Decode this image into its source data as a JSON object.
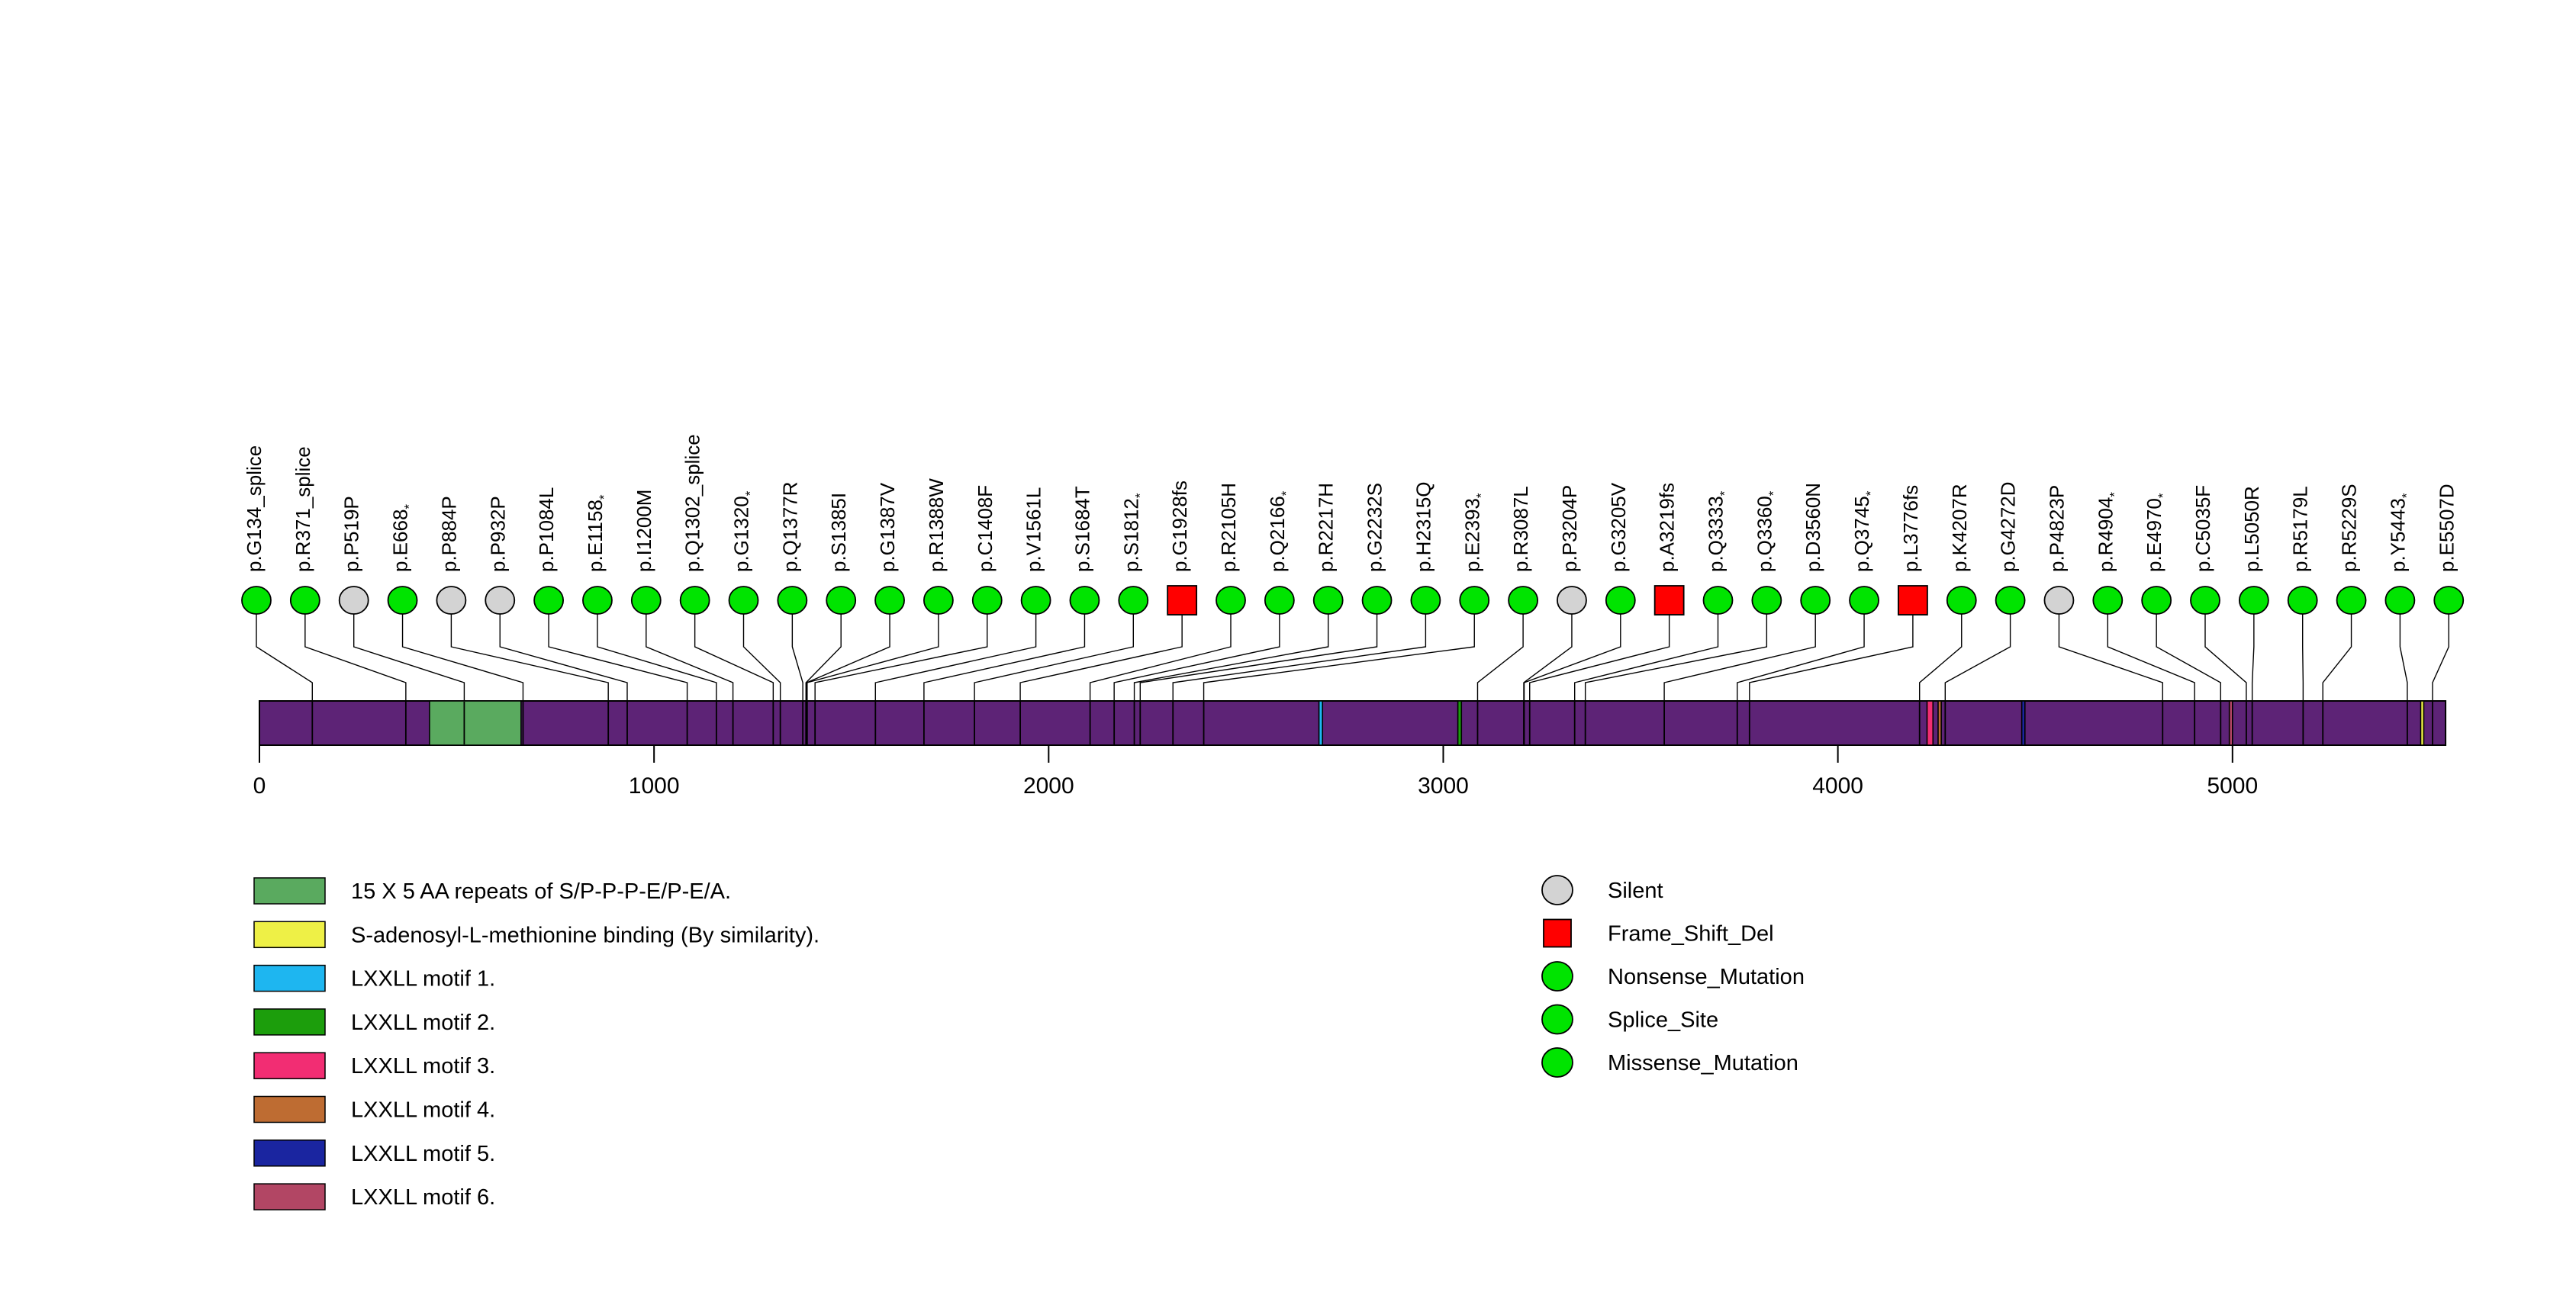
{
  "figure": {
    "background": "#FFFFFF",
    "description": "Protein lollipop mutation plot"
  },
  "chart_data": {
    "type": "lollipop",
    "xlim": [
      0,
      5540
    ],
    "axis": {
      "ticks": [
        0,
        1000,
        2000,
        3000,
        4000,
        5000
      ]
    },
    "mutation_type_styles": {
      "Silent": {
        "color": "#D3D3D3",
        "shape": "circle"
      },
      "Frame_Shift_Del": {
        "color": "#FF0000",
        "shape": "square"
      },
      "Nonsense_Mutation": {
        "color": "#00E400",
        "shape": "circle"
      },
      "Splice_Site": {
        "color": "#00E400",
        "shape": "circle"
      },
      "Missense_Mutation": {
        "color": "#00E400",
        "shape": "circle"
      }
    },
    "mutations": [
      {
        "label": "p.G134_splice",
        "aa": 134,
        "type": "Splice_Site"
      },
      {
        "label": "p.R371_splice",
        "aa": 371,
        "type": "Splice_Site"
      },
      {
        "label": "p.P519P",
        "aa": 519,
        "type": "Silent"
      },
      {
        "label": "p.E668*",
        "aa": 668,
        "type": "Nonsense_Mutation"
      },
      {
        "label": "p.P884P",
        "aa": 884,
        "type": "Silent"
      },
      {
        "label": "p.P932P",
        "aa": 932,
        "type": "Silent"
      },
      {
        "label": "p.P1084L",
        "aa": 1084,
        "type": "Missense_Mutation"
      },
      {
        "label": "p.E1158*",
        "aa": 1158,
        "type": "Nonsense_Mutation"
      },
      {
        "label": "p.I1200M",
        "aa": 1200,
        "type": "Missense_Mutation"
      },
      {
        "label": "p.Q1302_splice",
        "aa": 1302,
        "type": "Splice_Site"
      },
      {
        "label": "p.G1320*",
        "aa": 1320,
        "type": "Nonsense_Mutation"
      },
      {
        "label": "p.Q1377R",
        "aa": 1377,
        "type": "Missense_Mutation"
      },
      {
        "label": "p.S1385I",
        "aa": 1385,
        "type": "Missense_Mutation"
      },
      {
        "label": "p.G1387V",
        "aa": 1387,
        "type": "Missense_Mutation"
      },
      {
        "label": "p.R1388W",
        "aa": 1388,
        "type": "Missense_Mutation"
      },
      {
        "label": "p.C1408F",
        "aa": 1408,
        "type": "Missense_Mutation"
      },
      {
        "label": "p.V1561L",
        "aa": 1561,
        "type": "Missense_Mutation"
      },
      {
        "label": "p.S1684T",
        "aa": 1684,
        "type": "Missense_Mutation"
      },
      {
        "label": "p.S1812*",
        "aa": 1812,
        "type": "Nonsense_Mutation"
      },
      {
        "label": "p.G1928fs",
        "aa": 1928,
        "type": "Frame_Shift_Del"
      },
      {
        "label": "p.R2105H",
        "aa": 2105,
        "type": "Missense_Mutation"
      },
      {
        "label": "p.Q2166*",
        "aa": 2166,
        "type": "Nonsense_Mutation"
      },
      {
        "label": "p.R2217H",
        "aa": 2217,
        "type": "Missense_Mutation"
      },
      {
        "label": "p.G2232S",
        "aa": 2232,
        "type": "Missense_Mutation"
      },
      {
        "label": "p.H2315Q",
        "aa": 2315,
        "type": "Missense_Mutation"
      },
      {
        "label": "p.E2393*",
        "aa": 2393,
        "type": "Nonsense_Mutation"
      },
      {
        "label": "p.R3087L",
        "aa": 3087,
        "type": "Missense_Mutation"
      },
      {
        "label": "p.P3204P",
        "aa": 3204,
        "type": "Silent"
      },
      {
        "label": "p.G3205V",
        "aa": 3205,
        "type": "Missense_Mutation"
      },
      {
        "label": "p.A3219fs",
        "aa": 3219,
        "type": "Frame_Shift_Del"
      },
      {
        "label": "p.Q3333*",
        "aa": 3333,
        "type": "Nonsense_Mutation"
      },
      {
        "label": "p.Q3360*",
        "aa": 3360,
        "type": "Nonsense_Mutation"
      },
      {
        "label": "p.D3560N",
        "aa": 3560,
        "type": "Missense_Mutation"
      },
      {
        "label": "p.Q3745*",
        "aa": 3745,
        "type": "Nonsense_Mutation"
      },
      {
        "label": "p.L3776fs",
        "aa": 3776,
        "type": "Frame_Shift_Del"
      },
      {
        "label": "p.K4207R",
        "aa": 4207,
        "type": "Missense_Mutation"
      },
      {
        "label": "p.G4272D",
        "aa": 4272,
        "type": "Missense_Mutation"
      },
      {
        "label": "p.P4823P",
        "aa": 4823,
        "type": "Silent"
      },
      {
        "label": "p.R4904*",
        "aa": 4904,
        "type": "Nonsense_Mutation"
      },
      {
        "label": "p.E4970*",
        "aa": 4970,
        "type": "Nonsense_Mutation"
      },
      {
        "label": "p.C5035F",
        "aa": 5035,
        "type": "Missense_Mutation"
      },
      {
        "label": "p.L5050R",
        "aa": 5050,
        "type": "Missense_Mutation"
      },
      {
        "label": "p.R5179L",
        "aa": 5179,
        "type": "Missense_Mutation"
      },
      {
        "label": "p.R5229S",
        "aa": 5229,
        "type": "Missense_Mutation"
      },
      {
        "label": "p.Y5443*",
        "aa": 5443,
        "type": "Nonsense_Mutation"
      },
      {
        "label": "p.E5507D",
        "aa": 5507,
        "type": "Missense_Mutation"
      }
    ],
    "protein_bar_color": "#5D2376",
    "domains": [
      {
        "name": "15 X 5 AA repeats of S/P-P-P-E/P-E/A.",
        "start": 431,
        "end": 663,
        "color": "#5AAA5F"
      },
      {
        "name": "LXXLL motif 1.",
        "start": 2685,
        "end": 2694,
        "color": "#1EB6F0"
      },
      {
        "name": "LXXLL motif 2.",
        "start": 3037,
        "end": 3046,
        "color": "#1C9E0C"
      },
      {
        "name": "LXXLL motif 3.",
        "start": 4226,
        "end": 4241,
        "color": "#F22D73"
      },
      {
        "name": "LXXLL motif 4.",
        "start": 4254,
        "end": 4262,
        "color": "#BE6C32"
      },
      {
        "name": "LXXLL motif 5.",
        "start": 4466,
        "end": 4474,
        "color": "#1A25A0"
      },
      {
        "name": "LXXLL motif 6.",
        "start": 4992,
        "end": 5000,
        "color": "#B24664"
      },
      {
        "name": "S-adenosyl-L-methionine binding (By similarity).",
        "start": 5477,
        "end": 5484,
        "color": "#EEF046"
      }
    ],
    "legend_domains": [
      {
        "label": "15 X 5 AA repeats of S/P-P-P-E/P-E/A.",
        "color": "#5AAA5F"
      },
      {
        "label": "S-adenosyl-L-methionine binding (By similarity).",
        "color": "#EEF046"
      },
      {
        "label": "LXXLL motif 1.",
        "color": "#1EB6F0"
      },
      {
        "label": "LXXLL motif 2.",
        "color": "#1C9E0C"
      },
      {
        "label": "LXXLL motif 3.",
        "color": "#F22D73"
      },
      {
        "label": "LXXLL motif 4.",
        "color": "#BE6C32"
      },
      {
        "label": "LXXLL motif 5.",
        "color": "#1A25A0"
      },
      {
        "label": "LXXLL motif 6.",
        "color": "#B24664"
      }
    ],
    "legend_mutation_types": [
      {
        "label": "Silent",
        "color": "#D3D3D3",
        "shape": "circle"
      },
      {
        "label": "Frame_Shift_Del",
        "color": "#FF0000",
        "shape": "square"
      },
      {
        "label": "Nonsense_Mutation",
        "color": "#00E400",
        "shape": "circle"
      },
      {
        "label": "Splice_Site",
        "color": "#00E400",
        "shape": "circle"
      },
      {
        "label": "Missense_Mutation",
        "color": "#00E400",
        "shape": "circle"
      }
    ]
  }
}
